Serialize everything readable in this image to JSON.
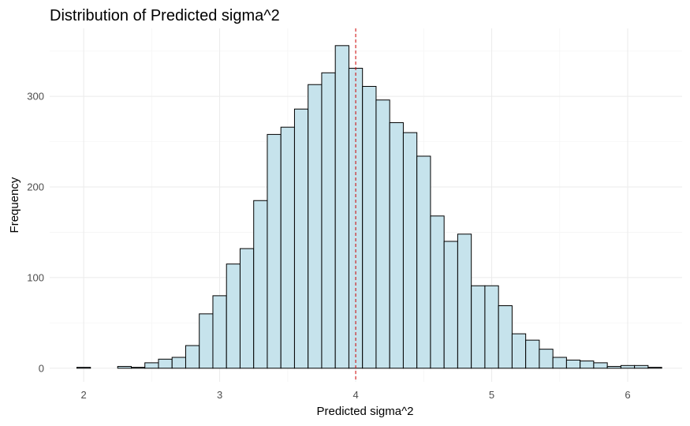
{
  "chart_data": {
    "type": "bar",
    "title": "Distribution of Predicted sigma^2",
    "xlabel": "Predicted sigma^2",
    "ylabel": "Frequency",
    "bin_width": 0.1,
    "bin_centers": [
      2.0,
      2.1,
      2.2,
      2.3,
      2.4,
      2.5,
      2.6,
      2.7,
      2.8,
      2.9,
      3.0,
      3.1,
      3.2,
      3.3,
      3.4,
      3.5,
      3.6,
      3.7,
      3.8,
      3.9,
      4.0,
      4.1,
      4.2,
      4.3,
      4.4,
      4.5,
      4.6,
      4.7,
      4.8,
      4.9,
      5.0,
      5.1,
      5.2,
      5.3,
      5.4,
      5.5,
      5.6,
      5.7,
      5.8,
      5.9,
      6.0,
      6.1,
      6.2
    ],
    "values": [
      1,
      0,
      0,
      2,
      1,
      6,
      10,
      12,
      25,
      60,
      80,
      115,
      132,
      185,
      258,
      266,
      286,
      313,
      326,
      356,
      331,
      311,
      296,
      271,
      260,
      234,
      168,
      140,
      148,
      91,
      91,
      69,
      38,
      31,
      21,
      12,
      9,
      8,
      6,
      2,
      3,
      3,
      1
    ],
    "xlim": [
      1.75,
      6.4
    ],
    "ylim": [
      -15,
      375
    ],
    "x_ticks": [
      2,
      3,
      4,
      5,
      6
    ],
    "y_ticks": [
      0,
      100,
      200,
      300
    ],
    "reference_line": {
      "x": 4.0,
      "color": "#cc0000",
      "style": "dashed"
    },
    "bar_fill": "#c6e3ec",
    "bar_stroke": "#000000",
    "grid": true,
    "legend": "none"
  }
}
